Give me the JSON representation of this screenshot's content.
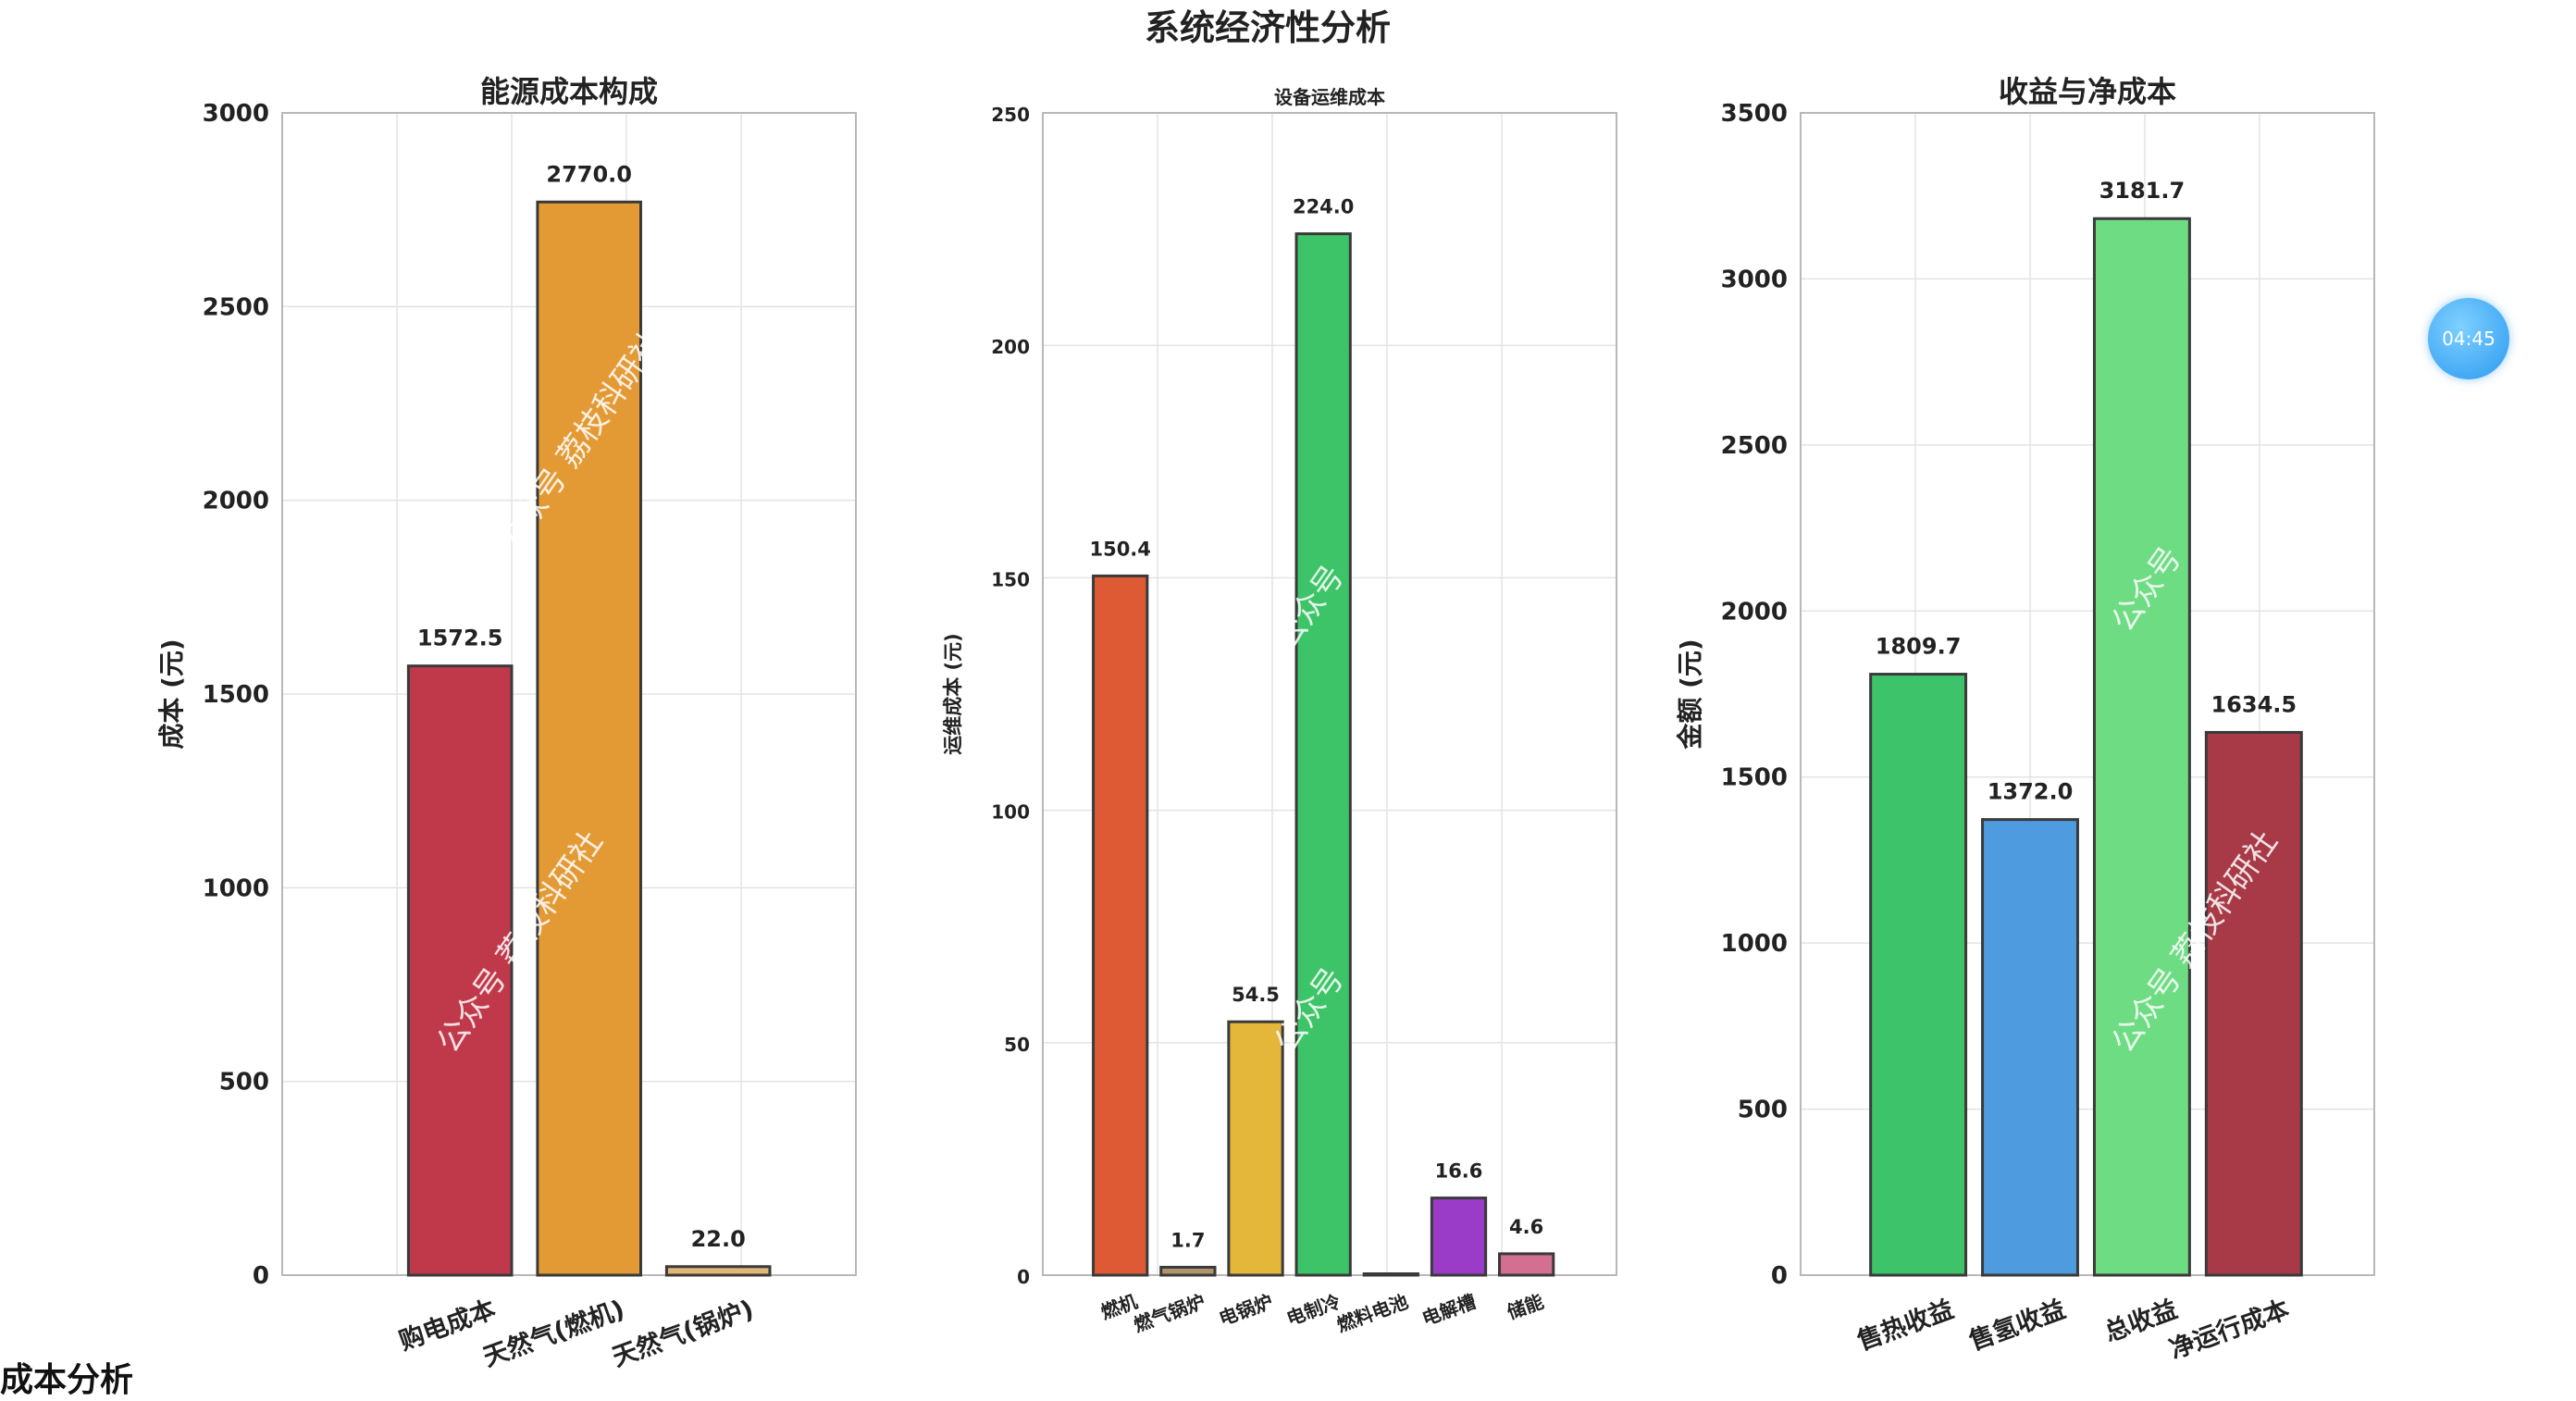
{
  "figure": {
    "suptitle": "系统经济性分析"
  },
  "badge": {
    "timer": "04:45"
  },
  "caption": {
    "text": "成本分析"
  },
  "watermarks": {
    "left": "公众号 荔枝科研社",
    "mid": "公众号",
    "right": "公众号 荔枝科研社"
  },
  "chart_data": [
    {
      "type": "bar",
      "title": "能源成本构成",
      "ylabel": "成本 (元)",
      "ylim": [
        0,
        3000
      ],
      "yticks": [
        0,
        500,
        1000,
        1500,
        2000,
        2500,
        3000
      ],
      "categories": [
        "购电成本",
        "天然气(燃机)",
        "天然气(锅炉)"
      ],
      "values": [
        1572.5,
        2770.0,
        22.0
      ],
      "value_labels": [
        "1572.5",
        "2770.0",
        "22.0"
      ],
      "colors": [
        "#c0394a",
        "#e39a35",
        "#e0b774"
      ],
      "grid": true
    },
    {
      "type": "bar",
      "title": "设备运维成本",
      "ylabel": "运维成本 (元)",
      "ylim": [
        0,
        250
      ],
      "yticks": [
        0,
        50,
        100,
        150,
        200,
        250
      ],
      "categories": [
        "燃机",
        "燃气锅炉",
        "电锅炉",
        "电制冷",
        "燃料电池",
        "电解槽",
        "储能"
      ],
      "values": [
        150.4,
        1.7,
        54.5,
        224.0,
        0.3,
        16.6,
        4.6
      ],
      "value_labels": [
        "150.4",
        "1.7",
        "54.5",
        "224.0",
        "",
        "16.6",
        "4.6"
      ],
      "colors": [
        "#dd5a35",
        "#b0956a",
        "#e4b73a",
        "#3ec468",
        "#8a8a8a",
        "#9a3cc8",
        "#d36f90"
      ],
      "grid": true
    },
    {
      "type": "bar",
      "title": "收益与净成本",
      "ylabel": "金额 (元)",
      "ylim": [
        0,
        3500
      ],
      "yticks": [
        0,
        500,
        1000,
        1500,
        2000,
        2500,
        3000,
        3500
      ],
      "categories": [
        "售热收益",
        "售氢收益",
        "总收益",
        "净运行成本"
      ],
      "values": [
        1809.7,
        1372.0,
        3181.7,
        1634.5
      ],
      "value_labels": [
        "1809.7",
        "1372.0",
        "3181.7",
        "1634.5"
      ],
      "colors": [
        "#3dc46a",
        "#4f9be0",
        "#6ddc82",
        "#a83a48"
      ],
      "grid": true
    }
  ]
}
